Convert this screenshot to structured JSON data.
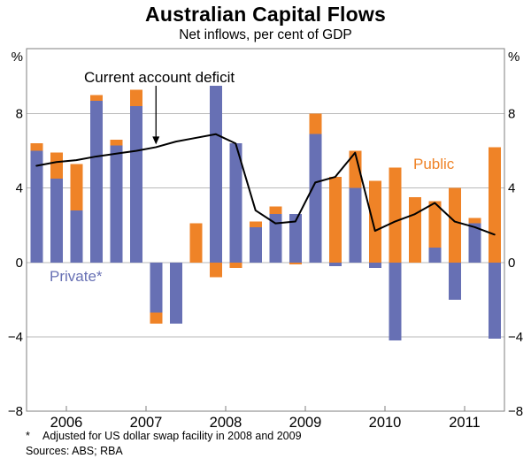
{
  "page": {
    "title": "Australian Capital Flows",
    "subtitle": "Net inflows, per cent of GDP"
  },
  "annotations": {
    "line_label": "Current account deficit",
    "public_label": "Public",
    "private_label": "Private*"
  },
  "footnotes": {
    "marker": "*",
    "text": "Adjusted for US dollar swap facility in 2008 and 2009",
    "sources": "Sources: ABS; RBA"
  },
  "chart_data": {
    "type": "bar",
    "subtype": "stacked-bars-with-line",
    "title": "Australian Capital Flows",
    "subtitle": "Net inflows, per cent of GDP",
    "unit": "per cent of GDP",
    "y_axis_symbol": "%",
    "categories": [
      "2005 Q3",
      "2005 Q4",
      "2006 Q1",
      "2006 Q2",
      "2006 Q3",
      "2006 Q4",
      "2007 Q1",
      "2007 Q2",
      "2007 Q3",
      "2007 Q4",
      "2008 Q1",
      "2008 Q2",
      "2008 Q3",
      "2008 Q4",
      "2009 Q1",
      "2009 Q2",
      "2009 Q3",
      "2009 Q4",
      "2010 Q1",
      "2010 Q2",
      "2010 Q3",
      "2010 Q4",
      "2011 Q1",
      "2011 Q2"
    ],
    "x_year_labels": [
      "2006",
      "2007",
      "2008",
      "2009",
      "2010",
      "2011"
    ],
    "series": [
      {
        "name": "Private",
        "color": "#6770b4",
        "values": [
          6.0,
          4.5,
          2.8,
          8.7,
          6.3,
          8.4,
          -2.7,
          -3.3,
          0.0,
          9.5,
          6.4,
          1.9,
          2.6,
          2.6,
          6.9,
          -0.2,
          4.0,
          -0.3,
          -4.2,
          0.0,
          0.8,
          -2.0,
          2.1,
          -4.1
        ]
      },
      {
        "name": "Public",
        "color": "#ef8327",
        "values": [
          0.4,
          1.4,
          2.5,
          0.3,
          0.3,
          0.9,
          -0.6,
          0.0,
          2.1,
          -0.8,
          -0.3,
          0.3,
          0.4,
          -0.1,
          1.1,
          4.6,
          2.0,
          4.4,
          5.1,
          3.5,
          2.5,
          4.0,
          0.3,
          6.2
        ]
      }
    ],
    "line_series": {
      "name": "Current account deficit",
      "color": "#000000",
      "values": [
        5.2,
        5.4,
        5.5,
        5.7,
        5.85,
        6.0,
        6.2,
        6.5,
        6.7,
        6.9,
        6.4,
        2.8,
        2.1,
        2.2,
        4.3,
        4.6,
        5.9,
        1.7,
        2.2,
        2.6,
        3.2,
        2.2,
        1.9,
        1.5
      ]
    },
    "ylim": [
      -8,
      11.5
    ],
    "yticks": [
      8,
      4,
      0,
      -4,
      -8
    ],
    "grid": true,
    "legend_position": "in-plot-labels",
    "colors": {
      "grid": "#b9b9b9",
      "border": "#7f7f7f",
      "private": "#6770b4",
      "public": "#ef8327",
      "line": "#000000"
    }
  }
}
